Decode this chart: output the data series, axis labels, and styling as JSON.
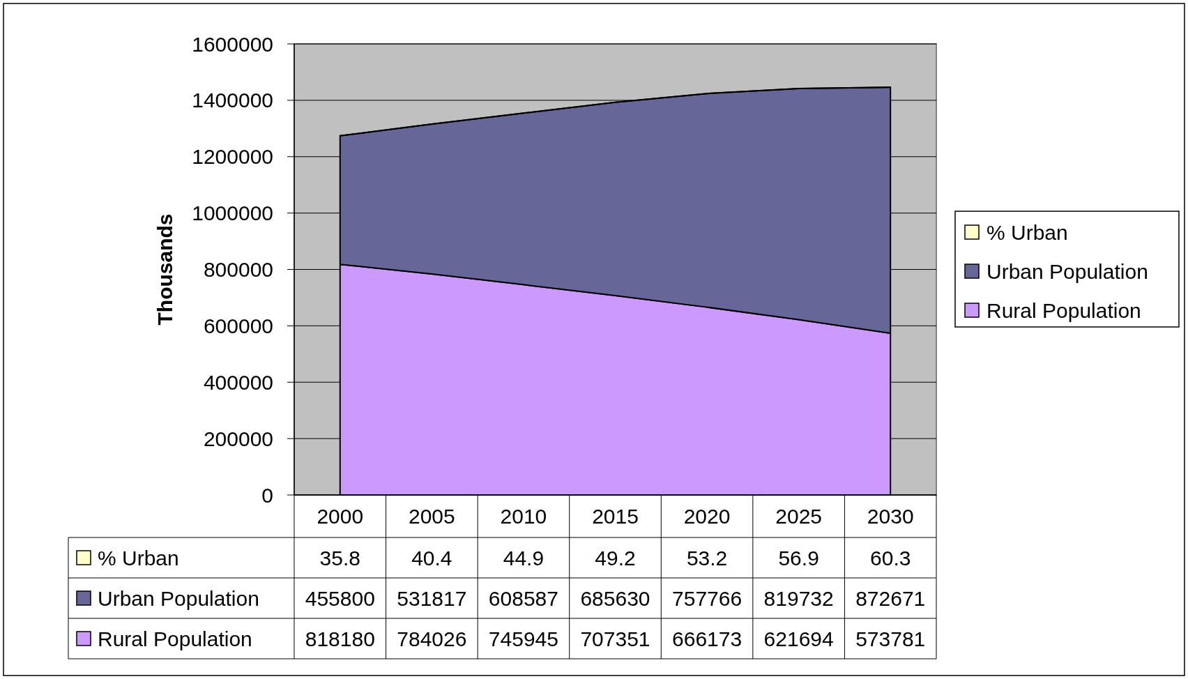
{
  "chart_data": {
    "type": "area",
    "stacked": true,
    "ylabel": "Thousands",
    "categories": [
      "2000",
      "2005",
      "2010",
      "2015",
      "2020",
      "2025",
      "2030"
    ],
    "series": [
      {
        "name": "Rural Population",
        "color": "#cc99ff",
        "values": [
          818180,
          784026,
          745945,
          707351,
          666173,
          621694,
          573781
        ]
      },
      {
        "name": "Urban Population",
        "color": "#666699",
        "values": [
          455800,
          531817,
          608587,
          685630,
          757766,
          819732,
          872671
        ]
      },
      {
        "name": "% Urban",
        "color": "#ffffcc",
        "values": [
          35.8,
          40.4,
          44.9,
          49.2,
          53.2,
          56.9,
          60.3
        ]
      }
    ],
    "ylim": [
      0,
      1600000
    ],
    "yticks": [
      0,
      200000,
      400000,
      600000,
      800000,
      1000000,
      1200000,
      1400000,
      1600000
    ],
    "grid": "y",
    "legend": "right",
    "data_labels": true
  }
}
